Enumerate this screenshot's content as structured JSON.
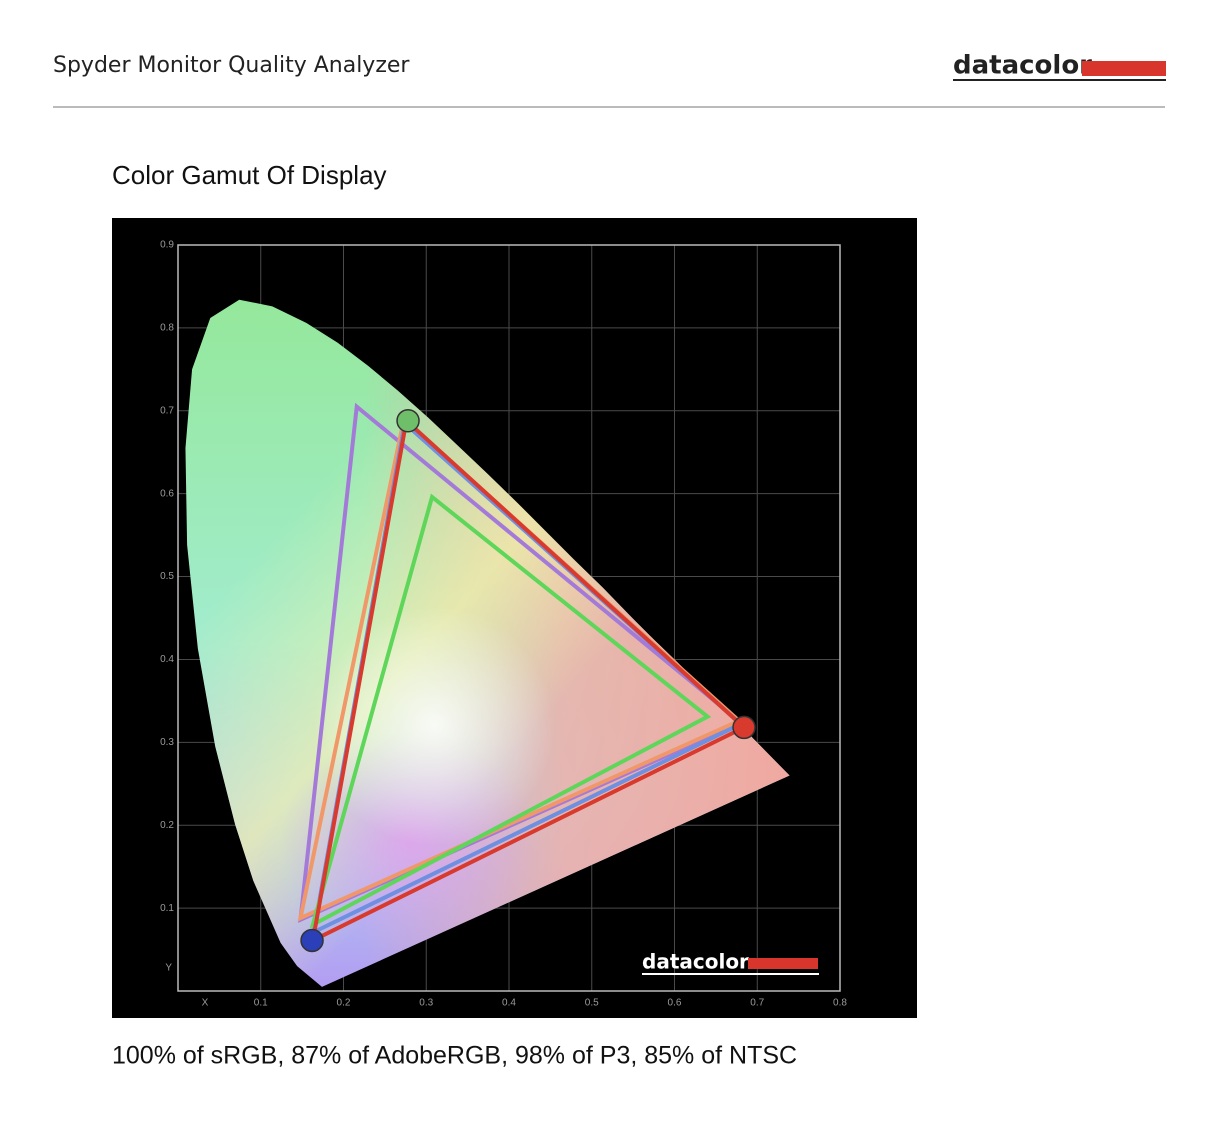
{
  "header": {
    "title": "Spyder Monitor Quality Analyzer",
    "logo": "datacolor"
  },
  "section_title": "Color Gamut Of Display",
  "caption": "100% of sRGB, 87% of AdobeRGB, 98% of P3, 85% of NTSC",
  "chart_data": {
    "type": "gamut",
    "watermark": "datacolor",
    "x_label": "X",
    "y_label": "Y",
    "xlim": [
      0,
      0.8
    ],
    "ylim": [
      0,
      0.9
    ],
    "xticks": [
      0.1,
      0.2,
      0.3,
      0.4,
      0.5,
      0.6,
      0.7,
      0.8
    ],
    "yticks": [
      0.1,
      0.2,
      0.3,
      0.4,
      0.5,
      0.6,
      0.7,
      0.8,
      0.9
    ],
    "grid": true,
    "locus": {
      "x": [
        0.174,
        0.144,
        0.124,
        0.091,
        0.069,
        0.045,
        0.024,
        0.011,
        0.009,
        0.017,
        0.039,
        0.074,
        0.114,
        0.155,
        0.193,
        0.23,
        0.266,
        0.302,
        0.337,
        0.373,
        0.409,
        0.444,
        0.479,
        0.513,
        0.545,
        0.575,
        0.603,
        0.627,
        0.648,
        0.666,
        0.68,
        0.739
      ],
      "y": [
        0.005,
        0.03,
        0.058,
        0.133,
        0.201,
        0.295,
        0.413,
        0.538,
        0.655,
        0.75,
        0.812,
        0.834,
        0.826,
        0.806,
        0.782,
        0.754,
        0.724,
        0.692,
        0.659,
        0.625,
        0.59,
        0.555,
        0.52,
        0.487,
        0.454,
        0.424,
        0.397,
        0.373,
        0.351,
        0.334,
        0.32,
        0.26
      ]
    },
    "series": [
      {
        "color": "#a47ad8",
        "x": [
          0.216,
          0.68,
          0.148
        ],
        "y": [
          0.705,
          0.324,
          0.086
        ]
      },
      {
        "color": "#f0986a",
        "x": [
          0.273,
          0.678,
          0.148
        ],
        "y": [
          0.69,
          0.326,
          0.088
        ]
      },
      {
        "color": "#6f8fe0",
        "x": [
          0.274,
          0.68,
          0.164
        ],
        "y": [
          0.685,
          0.322,
          0.071
        ]
      },
      {
        "color": "#5ed65a",
        "x": [
          0.307,
          0.64,
          0.163
        ],
        "y": [
          0.596,
          0.331,
          0.08
        ]
      },
      {
        "color": "#d83a2e",
        "x": [
          0.276,
          0.684,
          0.163
        ],
        "y": [
          0.688,
          0.318,
          0.061
        ]
      }
    ],
    "markers": {
      "x": [
        0.278,
        0.684,
        0.162
      ],
      "y": [
        0.688,
        0.318,
        0.061
      ],
      "colors": [
        "#6fbf6a",
        "#d83a2e",
        "#2a3fb8"
      ]
    }
  }
}
